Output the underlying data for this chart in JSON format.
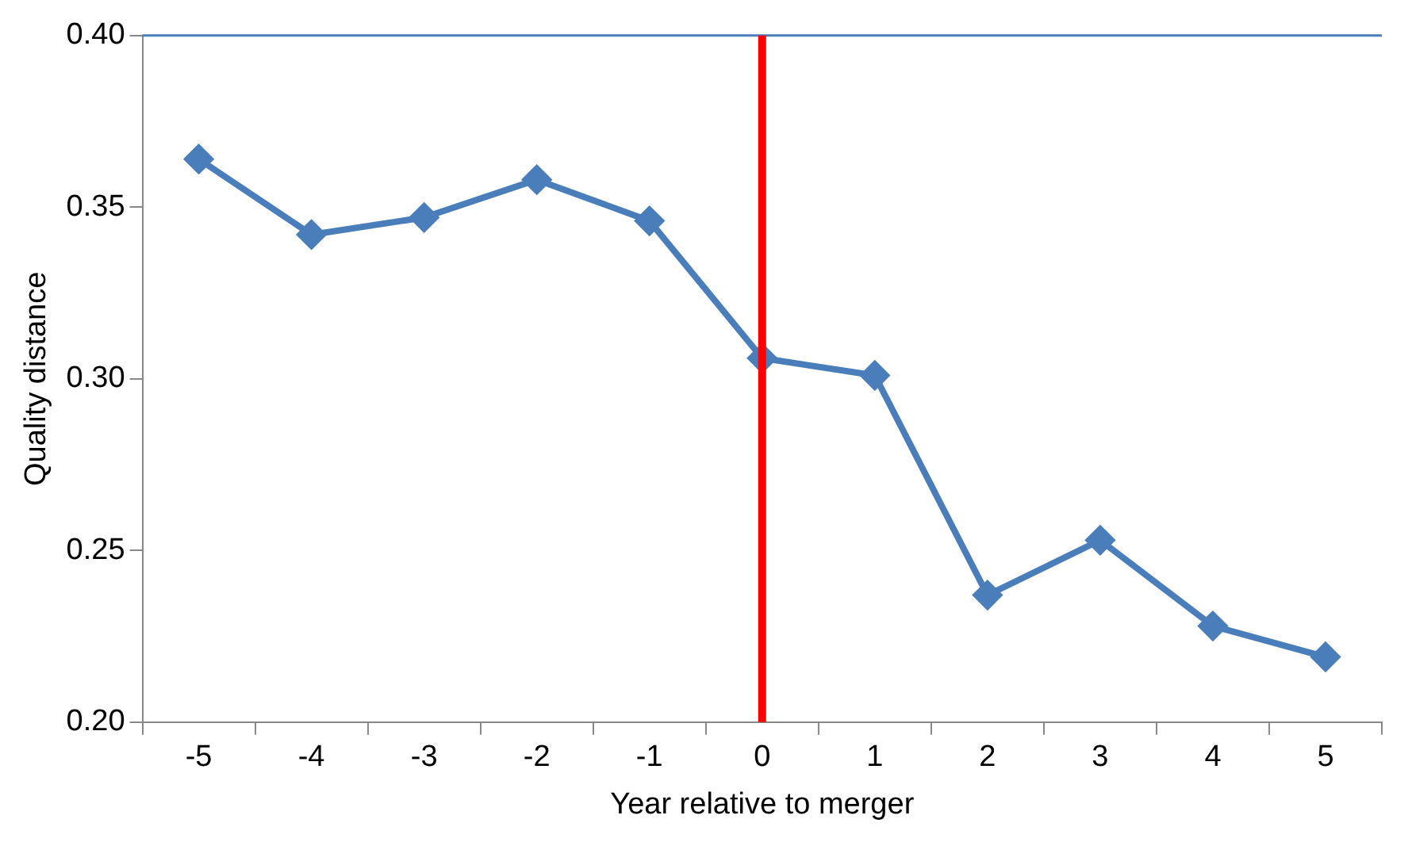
{
  "chart_data": {
    "type": "line",
    "xlabel": "Year relative to merger",
    "ylabel": "Quality distance",
    "categories": [
      "-5",
      "-4",
      "-3",
      "-2",
      "-1",
      "0",
      "1",
      "2",
      "3",
      "4",
      "5"
    ],
    "series": [
      {
        "color": "#4a7ebb",
        "values": [
          0.364,
          0.342,
          0.347,
          0.358,
          0.346,
          0.306,
          0.301,
          0.237,
          0.253,
          0.228,
          0.219
        ]
      }
    ],
    "ylim": [
      0.2,
      0.4
    ],
    "yticks": [
      {
        "value": 0.2,
        "label": "0.20"
      },
      {
        "value": 0.25,
        "label": "0.25"
      },
      {
        "value": 0.3,
        "label": "0.30"
      },
      {
        "value": 0.35,
        "label": "0.35"
      },
      {
        "value": 0.4,
        "label": "0.40"
      }
    ],
    "ref_lines": [
      {
        "axis": "x",
        "value": "0",
        "color": "#ff0000"
      }
    ],
    "grid": false,
    "legend": false,
    "marker": "diamond",
    "line_style": "solid"
  }
}
